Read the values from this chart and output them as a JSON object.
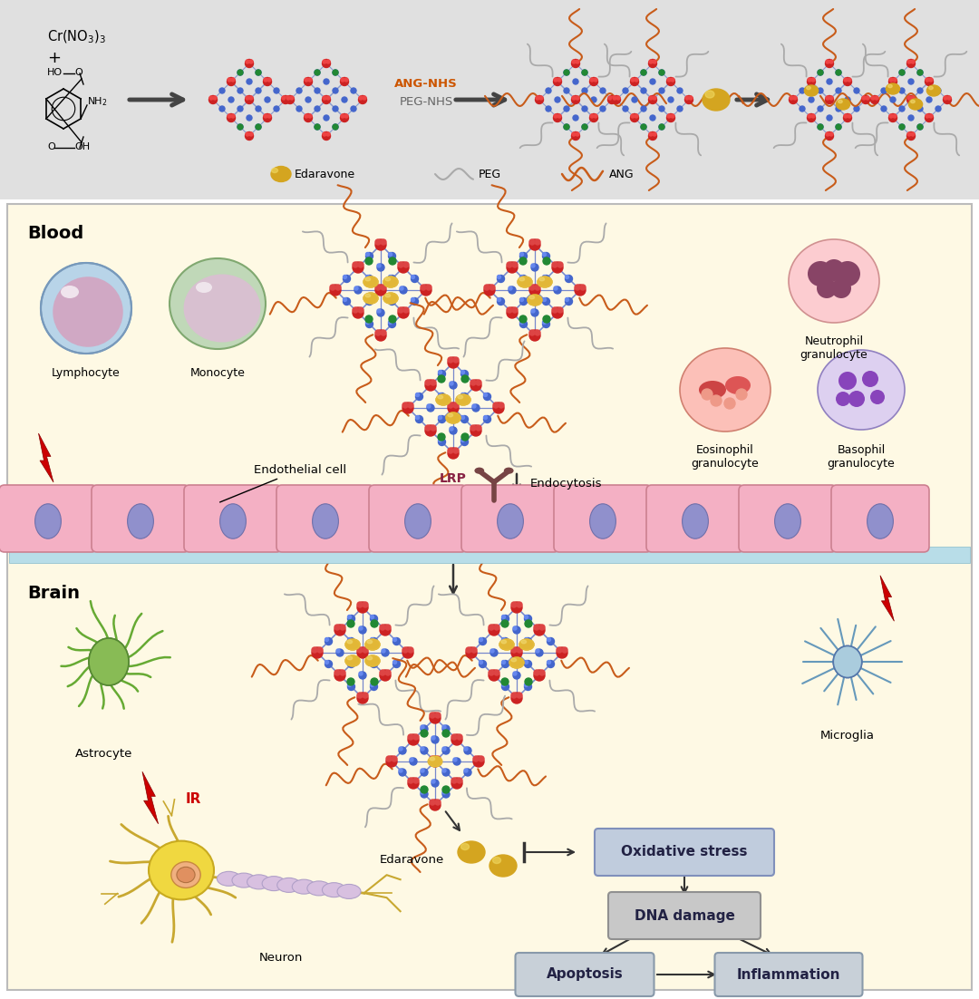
{
  "top_bg": "#e0e0e0",
  "blood_bg": "#fef9e4",
  "brain_bg": "#fef9e4",
  "ang_nhs_text": "ANG-NHS",
  "peg_nhs_text": "PEG-NHS",
  "blood_label": "Blood",
  "brain_label": "Brain",
  "lymphocyte_label": "Lymphocyte",
  "monocyte_label": "Monocyte",
  "neutrophil_label": "Neutrophil\ngranulocyte",
  "eosinophil_label": "Eosinophil\ngranulocyte",
  "basophil_label": "Basophil\ngranulocyte",
  "endothelial_label": "Endothelial cell",
  "lrp_label": "LRP",
  "endocytosis_label": "Endocytosis",
  "astrocyte_label": "Astrocyte",
  "microglia_label": "Microglia",
  "neuron_label": "Neuron",
  "edaravone_label": "Edaravone",
  "ir_label": "IR",
  "box1_text": "Oxidative stress",
  "box2_text": "DNA damage",
  "box3_text": "Apoptosis",
  "box4_text": "Inflammation",
  "edaravone_leg": "Edaravone",
  "peg_leg": "PEG",
  "ang_leg": "ANG"
}
